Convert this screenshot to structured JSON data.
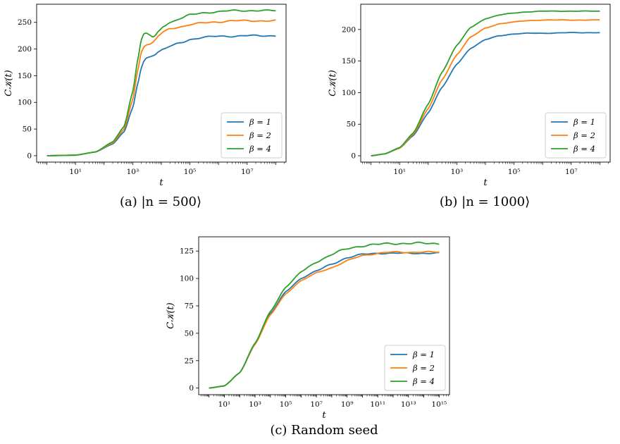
{
  "colors": {
    "beta1": "#1f77b4",
    "beta2": "#ff7f0e",
    "beta4": "#2ca02c"
  },
  "chart_data": [
    {
      "type": "line",
      "caption": "(a) |n = 500⟩",
      "xlabel": "t",
      "ylabel": "C𝒦(t)",
      "xscale": "log",
      "xlim": [
        1,
        100000000
      ],
      "ylim": [
        -12,
        284
      ],
      "yticks": [
        0,
        50,
        100,
        150,
        200,
        250
      ],
      "xticks": [
        {
          "value": 10,
          "label": "10¹"
        },
        {
          "value": 1000,
          "label": "10³"
        },
        {
          "value": 100000,
          "label": "10⁵"
        },
        {
          "value": 10000000,
          "label": "10⁷"
        }
      ],
      "legend": "lower-right",
      "grid": false,
      "series": [
        {
          "name": "β = 1",
          "x": [
            1,
            10,
            50,
            200,
            500,
            1000,
            1500,
            2000,
            2500,
            3000,
            4000,
            5000,
            6000,
            8000,
            12000,
            20000,
            50000,
            100000,
            300000,
            1000000,
            3000000,
            10000000,
            100000000
          ],
          "y": [
            0,
            1,
            7,
            22,
            45,
            90,
            135,
            165,
            178,
            183,
            186,
            188,
            190,
            195,
            200,
            205,
            212,
            218,
            222,
            224,
            224,
            225,
            225
          ]
        },
        {
          "name": "β = 2",
          "x": [
            1,
            10,
            50,
            200,
            500,
            1000,
            1500,
            2000,
            2500,
            3000,
            4000,
            5000,
            6000,
            8000,
            12000,
            20000,
            50000,
            100000,
            300000,
            1000000,
            3000000,
            10000000,
            100000000
          ],
          "y": [
            0,
            1,
            7,
            24,
            50,
            105,
            160,
            195,
            205,
            208,
            209,
            212,
            217,
            225,
            232,
            238,
            242,
            246,
            249,
            251,
            253,
            253,
            253
          ]
        },
        {
          "name": "β = 4",
          "x": [
            1,
            10,
            50,
            200,
            500,
            1000,
            1500,
            2000,
            2500,
            3000,
            4000,
            5000,
            6000,
            8000,
            12000,
            20000,
            50000,
            100000,
            300000,
            1000000,
            3000000,
            10000000,
            100000000
          ],
          "y": [
            0,
            1,
            7,
            26,
            55,
            120,
            180,
            218,
            229,
            230,
            226,
            222,
            224,
            233,
            243,
            250,
            258,
            264,
            268,
            270,
            272,
            272,
            272
          ]
        }
      ]
    },
    {
      "type": "line",
      "caption": "(b) |n = 1000⟩",
      "xlabel": "t",
      "ylabel": "C𝒦(t)",
      "xscale": "log",
      "xlim": [
        1,
        100000000
      ],
      "ylim": [
        -10,
        240
      ],
      "yticks": [
        0,
        50,
        100,
        150,
        200
      ],
      "xticks": [
        {
          "value": 10,
          "label": "10¹"
        },
        {
          "value": 1000,
          "label": "10³"
        },
        {
          "value": 100000,
          "label": "10⁵"
        },
        {
          "value": 10000000,
          "label": "10⁷"
        }
      ],
      "legend": "lower-right",
      "grid": false,
      "series": [
        {
          "name": "β = 1",
          "x": [
            1,
            3,
            10,
            30,
            100,
            300,
            1000,
            3000,
            10000,
            30000,
            100000,
            300000,
            1000000,
            10000000,
            100000000
          ],
          "y": [
            0,
            3,
            12,
            32,
            68,
            108,
            145,
            170,
            184,
            190,
            193,
            194,
            194,
            195,
            195
          ]
        },
        {
          "name": "β = 2",
          "x": [
            1,
            3,
            10,
            30,
            100,
            300,
            1000,
            3000,
            10000,
            30000,
            100000,
            300000,
            1000000,
            10000000,
            100000000
          ],
          "y": [
            0,
            3,
            12,
            34,
            75,
            120,
            160,
            188,
            202,
            209,
            212,
            214,
            215,
            215,
            215
          ]
        },
        {
          "name": "β = 4",
          "x": [
            1,
            3,
            10,
            30,
            100,
            300,
            1000,
            3000,
            10000,
            30000,
            100000,
            300000,
            1000000,
            10000000,
            100000000
          ],
          "y": [
            0,
            3,
            13,
            36,
            82,
            132,
            175,
            203,
            217,
            223,
            226,
            228,
            229,
            229,
            229
          ]
        }
      ]
    },
    {
      "type": "line",
      "caption": "(c) Random seed",
      "xlabel": "t",
      "ylabel": "C𝒦(t)",
      "xscale": "log",
      "xlim": [
        1,
        1000000000000000
      ],
      "ylim": [
        -6,
        138
      ],
      "yticks": [
        0,
        25,
        50,
        75,
        100,
        125
      ],
      "xticks": [
        {
          "value": 10,
          "label": "10¹"
        },
        {
          "value": 1000,
          "label": "10³"
        },
        {
          "value": 100000,
          "label": "10⁵"
        },
        {
          "value": 10000000,
          "label": "10⁷"
        },
        {
          "value": 1000000000,
          "label": "10⁹"
        },
        {
          "value": 100000000000,
          "label": "10¹¹"
        },
        {
          "value": 10000000000000,
          "label": "10¹³"
        },
        {
          "value": 1000000000000000,
          "label": "10¹⁵"
        }
      ],
      "legend": "lower-right",
      "grid": false,
      "series": [
        {
          "name": "β = 1",
          "x": [
            1,
            10,
            100,
            1000,
            10000,
            100000,
            1000000,
            10000000,
            100000000,
            1000000000,
            10000000000,
            100000000000,
            1000000000000,
            10000000000000,
            1000000000000000
          ],
          "y": [
            0,
            2,
            14,
            40,
            68,
            88,
            100,
            107,
            113,
            119,
            122,
            123,
            123,
            123,
            123
          ]
        },
        {
          "name": "β = 2",
          "x": [
            1,
            10,
            100,
            1000,
            10000,
            100000,
            1000000,
            10000000,
            100000000,
            1000000000,
            10000000000,
            100000000000,
            1000000000000,
            10000000000000,
            1000000000000000
          ],
          "y": [
            0,
            2,
            14,
            40,
            67,
            86,
            98,
            105,
            110,
            116,
            121,
            123,
            124,
            124,
            124
          ]
        },
        {
          "name": "β = 4",
          "x": [
            1,
            10,
            100,
            1000,
            10000,
            100000,
            1000000,
            10000000,
            100000000,
            1000000000,
            10000000000,
            100000000000,
            1000000000000,
            10000000000000,
            1000000000000000
          ],
          "y": [
            0,
            2,
            14,
            41,
            70,
            92,
            106,
            115,
            122,
            127,
            130,
            131,
            132,
            132,
            132
          ]
        }
      ]
    }
  ]
}
